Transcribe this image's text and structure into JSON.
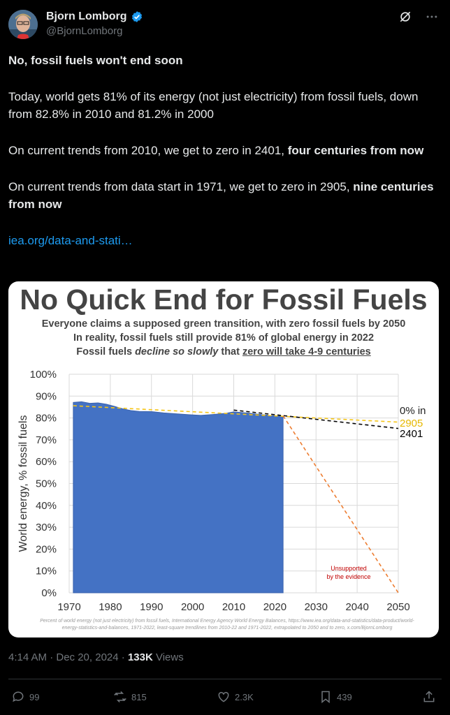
{
  "author": {
    "name": "Bjorn Lomborg",
    "handle": "@BjornLomborg"
  },
  "tweet": {
    "line1": "No, fossil fuels won't end soon",
    "para2": "Today, world gets 81% of its energy (not just electricity) from fossil fuels, down from 82.8% in 2010 and 81.2% in 2000",
    "para3_a": "On current trends from 2010, we get to zero in 2401, ",
    "para3_b": "four centuries from now",
    "para4_a": "On current trends from data start in 1971, we get to zero in 2905, ",
    "para4_b": "nine centuries from now",
    "link": "iea.org/data-and-stati…"
  },
  "chart_data": {
    "type": "area",
    "title": "No Quick End for Fossil Fuels",
    "subtitle_1": "Everyone claims a supposed green transition, with zero fossil fuels by 2050",
    "subtitle_2": "In reality, fossil fuels still provide 81% of global energy in 2022",
    "subtitle_3_a": "Fossil fuels ",
    "subtitle_3_b": "decline so slowly",
    "subtitle_3_c": " that ",
    "subtitle_3_d": "zero will take 4-9 centuries",
    "ylabel": "World energy, % fossil fuels",
    "xlim": [
      1970,
      2050
    ],
    "ylim": [
      0,
      100
    ],
    "x_ticks": [
      "1970",
      "1980",
      "1990",
      "2000",
      "2010",
      "2020",
      "2030",
      "2040",
      "2050"
    ],
    "y_ticks": [
      "0%",
      "10%",
      "20%",
      "30%",
      "40%",
      "50%",
      "60%",
      "70%",
      "80%",
      "90%",
      "100%"
    ],
    "series": [
      {
        "x": [
          1971,
          1973,
          1975,
          1977,
          1979,
          1981,
          1983,
          1985,
          1987,
          1990,
          1993,
          1996,
          1999,
          2002,
          2005,
          2008,
          2010,
          2013,
          2016,
          2019,
          2022
        ],
        "values": [
          87.1,
          87.4,
          86.7,
          86.9,
          86.3,
          85.3,
          84.2,
          83.4,
          83.0,
          82.9,
          82.3,
          81.9,
          81.5,
          81.2,
          81.6,
          82.1,
          82.8,
          82.3,
          81.7,
          81.1,
          80.8
        ]
      }
    ],
    "trend_2010": {
      "x": [
        2010,
        2050
      ],
      "values": [
        83.6,
        75.2
      ]
    },
    "trend_1971": {
      "x": [
        1971,
        2050
      ],
      "values": [
        85.6,
        78.1
      ]
    },
    "extrapolation_2050": {
      "x": [
        2022,
        2050
      ],
      "values": [
        81.0,
        0
      ]
    },
    "end_label": "0% in",
    "end_1971": "2905",
    "end_2010": "2401",
    "annotation_1": "Unsupported",
    "annotation_2": "by the evidence",
    "footnote_1": "Percent of world energy (not just electricity) from fossil fuels, International Energy Agency World Energy Balances, https://www.iea.org/data-and-statistics/data-product/world-",
    "footnote_2": "energy-statistics-and-balances, 1971-2022, least-square trendlines from 2010-22 and 1971-2022, extrapolated to 2050 and to zero, x.com/BjornLomborg",
    "colors": {
      "area": "#4472c4",
      "trend_2010": "#000000",
      "trend_1971": "#f5c518",
      "extrapolation": "#ed7d31",
      "annotation": "#c00000"
    }
  },
  "meta": {
    "time": "4:14 AM · Dec 20, 2024 · ",
    "views_count": "133K",
    "views_label": " Views"
  },
  "actions": {
    "replies": "99",
    "reposts": "815",
    "likes": "2.3K",
    "bookmarks": "439"
  }
}
